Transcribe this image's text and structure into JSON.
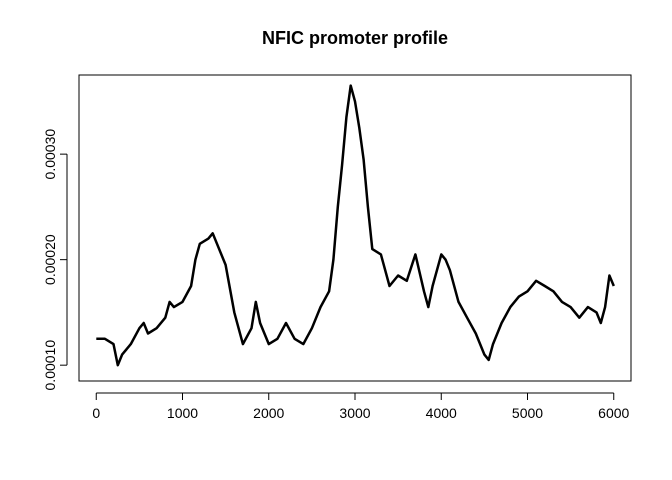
{
  "chart_data": {
    "type": "line",
    "title": "NFIC promoter profile",
    "xlabel": "",
    "ylabel": "",
    "xlim": [
      -200,
      6200
    ],
    "ylim": [
      8.5e-05,
      0.000375
    ],
    "grid": false,
    "xticks": [
      0,
      1000,
      2000,
      3000,
      4000,
      5000,
      6000
    ],
    "xtick_labels": [
      "0",
      "1000",
      "2000",
      "3000",
      "4000",
      "5000",
      "6000"
    ],
    "yticks": [
      0.0001,
      0.0002,
      0.0003
    ],
    "ytick_labels": [
      "0.00010",
      "0.00020",
      "0.00030"
    ],
    "series": [
      {
        "color": "#000000",
        "x": [
          0,
          100,
          200,
          250,
          300,
          400,
          500,
          550,
          600,
          700,
          800,
          850,
          900,
          1000,
          1100,
          1150,
          1200,
          1300,
          1350,
          1400,
          1500,
          1600,
          1700,
          1800,
          1850,
          1900,
          2000,
          2100,
          2200,
          2300,
          2400,
          2500,
          2600,
          2700,
          2750,
          2800,
          2850,
          2900,
          2950,
          3000,
          3050,
          3100,
          3150,
          3200,
          3300,
          3400,
          3500,
          3600,
          3700,
          3800,
          3850,
          3900,
          4000,
          4050,
          4100,
          4200,
          4300,
          4400,
          4500,
          4550,
          4600,
          4700,
          4800,
          4900,
          5000,
          5100,
          5200,
          5300,
          5400,
          5500,
          5600,
          5700,
          5800,
          5850,
          5900,
          5950,
          6000
        ],
        "y": [
          0.000125,
          0.000125,
          0.00012,
          0.0001,
          0.00011,
          0.00012,
          0.000135,
          0.00014,
          0.00013,
          0.000135,
          0.000145,
          0.00016,
          0.000155,
          0.00016,
          0.000175,
          0.0002,
          0.000215,
          0.00022,
          0.000225,
          0.000215,
          0.000195,
          0.00015,
          0.00012,
          0.000135,
          0.00016,
          0.00014,
          0.00012,
          0.000125,
          0.00014,
          0.000125,
          0.00012,
          0.000135,
          0.000155,
          0.00017,
          0.0002,
          0.00025,
          0.00029,
          0.000335,
          0.000365,
          0.00035,
          0.000325,
          0.000295,
          0.00025,
          0.00021,
          0.000205,
          0.000175,
          0.000185,
          0.00018,
          0.000205,
          0.00017,
          0.000155,
          0.000175,
          0.000205,
          0.0002,
          0.00019,
          0.00016,
          0.000145,
          0.00013,
          0.00011,
          0.000105,
          0.00012,
          0.00014,
          0.000155,
          0.000165,
          0.00017,
          0.00018,
          0.000175,
          0.00017,
          0.00016,
          0.000155,
          0.000145,
          0.000155,
          0.00015,
          0.00014,
          0.000155,
          0.000185,
          0.000175
        ]
      }
    ]
  }
}
